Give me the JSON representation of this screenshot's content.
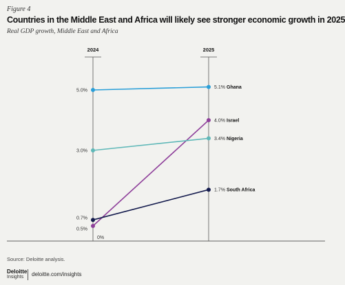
{
  "figure_label": "Figure 4",
  "title": "Countries in the Middle East and Africa will likely see stronger economic growth in 2025",
  "subtitle": "Real GDP growth, Middle East and Africa",
  "source": "Source: Deloitte analysis.",
  "brand": {
    "name": "Deloitte",
    "sub": "Insights",
    "url": "deloitte.com/insights"
  },
  "chart_data": {
    "type": "line",
    "style": "slope",
    "categories": [
      "2024",
      "2025"
    ],
    "baseline_label": "0%",
    "ylim": [
      0,
      5.7
    ],
    "grid": false,
    "series": [
      {
        "name": "Ghana",
        "values": [
          5.0,
          5.1
        ],
        "labels": [
          "5.0%",
          "5.1%"
        ],
        "color": "#2a9fd8"
      },
      {
        "name": "Israel",
        "values": [
          0.5,
          4.0
        ],
        "labels": [
          "0.5%",
          "4.0%"
        ],
        "color": "#8e3f9a"
      },
      {
        "name": "Nigeria",
        "values": [
          3.0,
          3.4
        ],
        "labels": [
          "3.0%",
          "3.4%"
        ],
        "color": "#5fb8b8"
      },
      {
        "name": "South Africa",
        "values": [
          0.7,
          1.7
        ],
        "labels": [
          "0.7%",
          "1.7%"
        ],
        "color": "#141b4d"
      }
    ]
  }
}
